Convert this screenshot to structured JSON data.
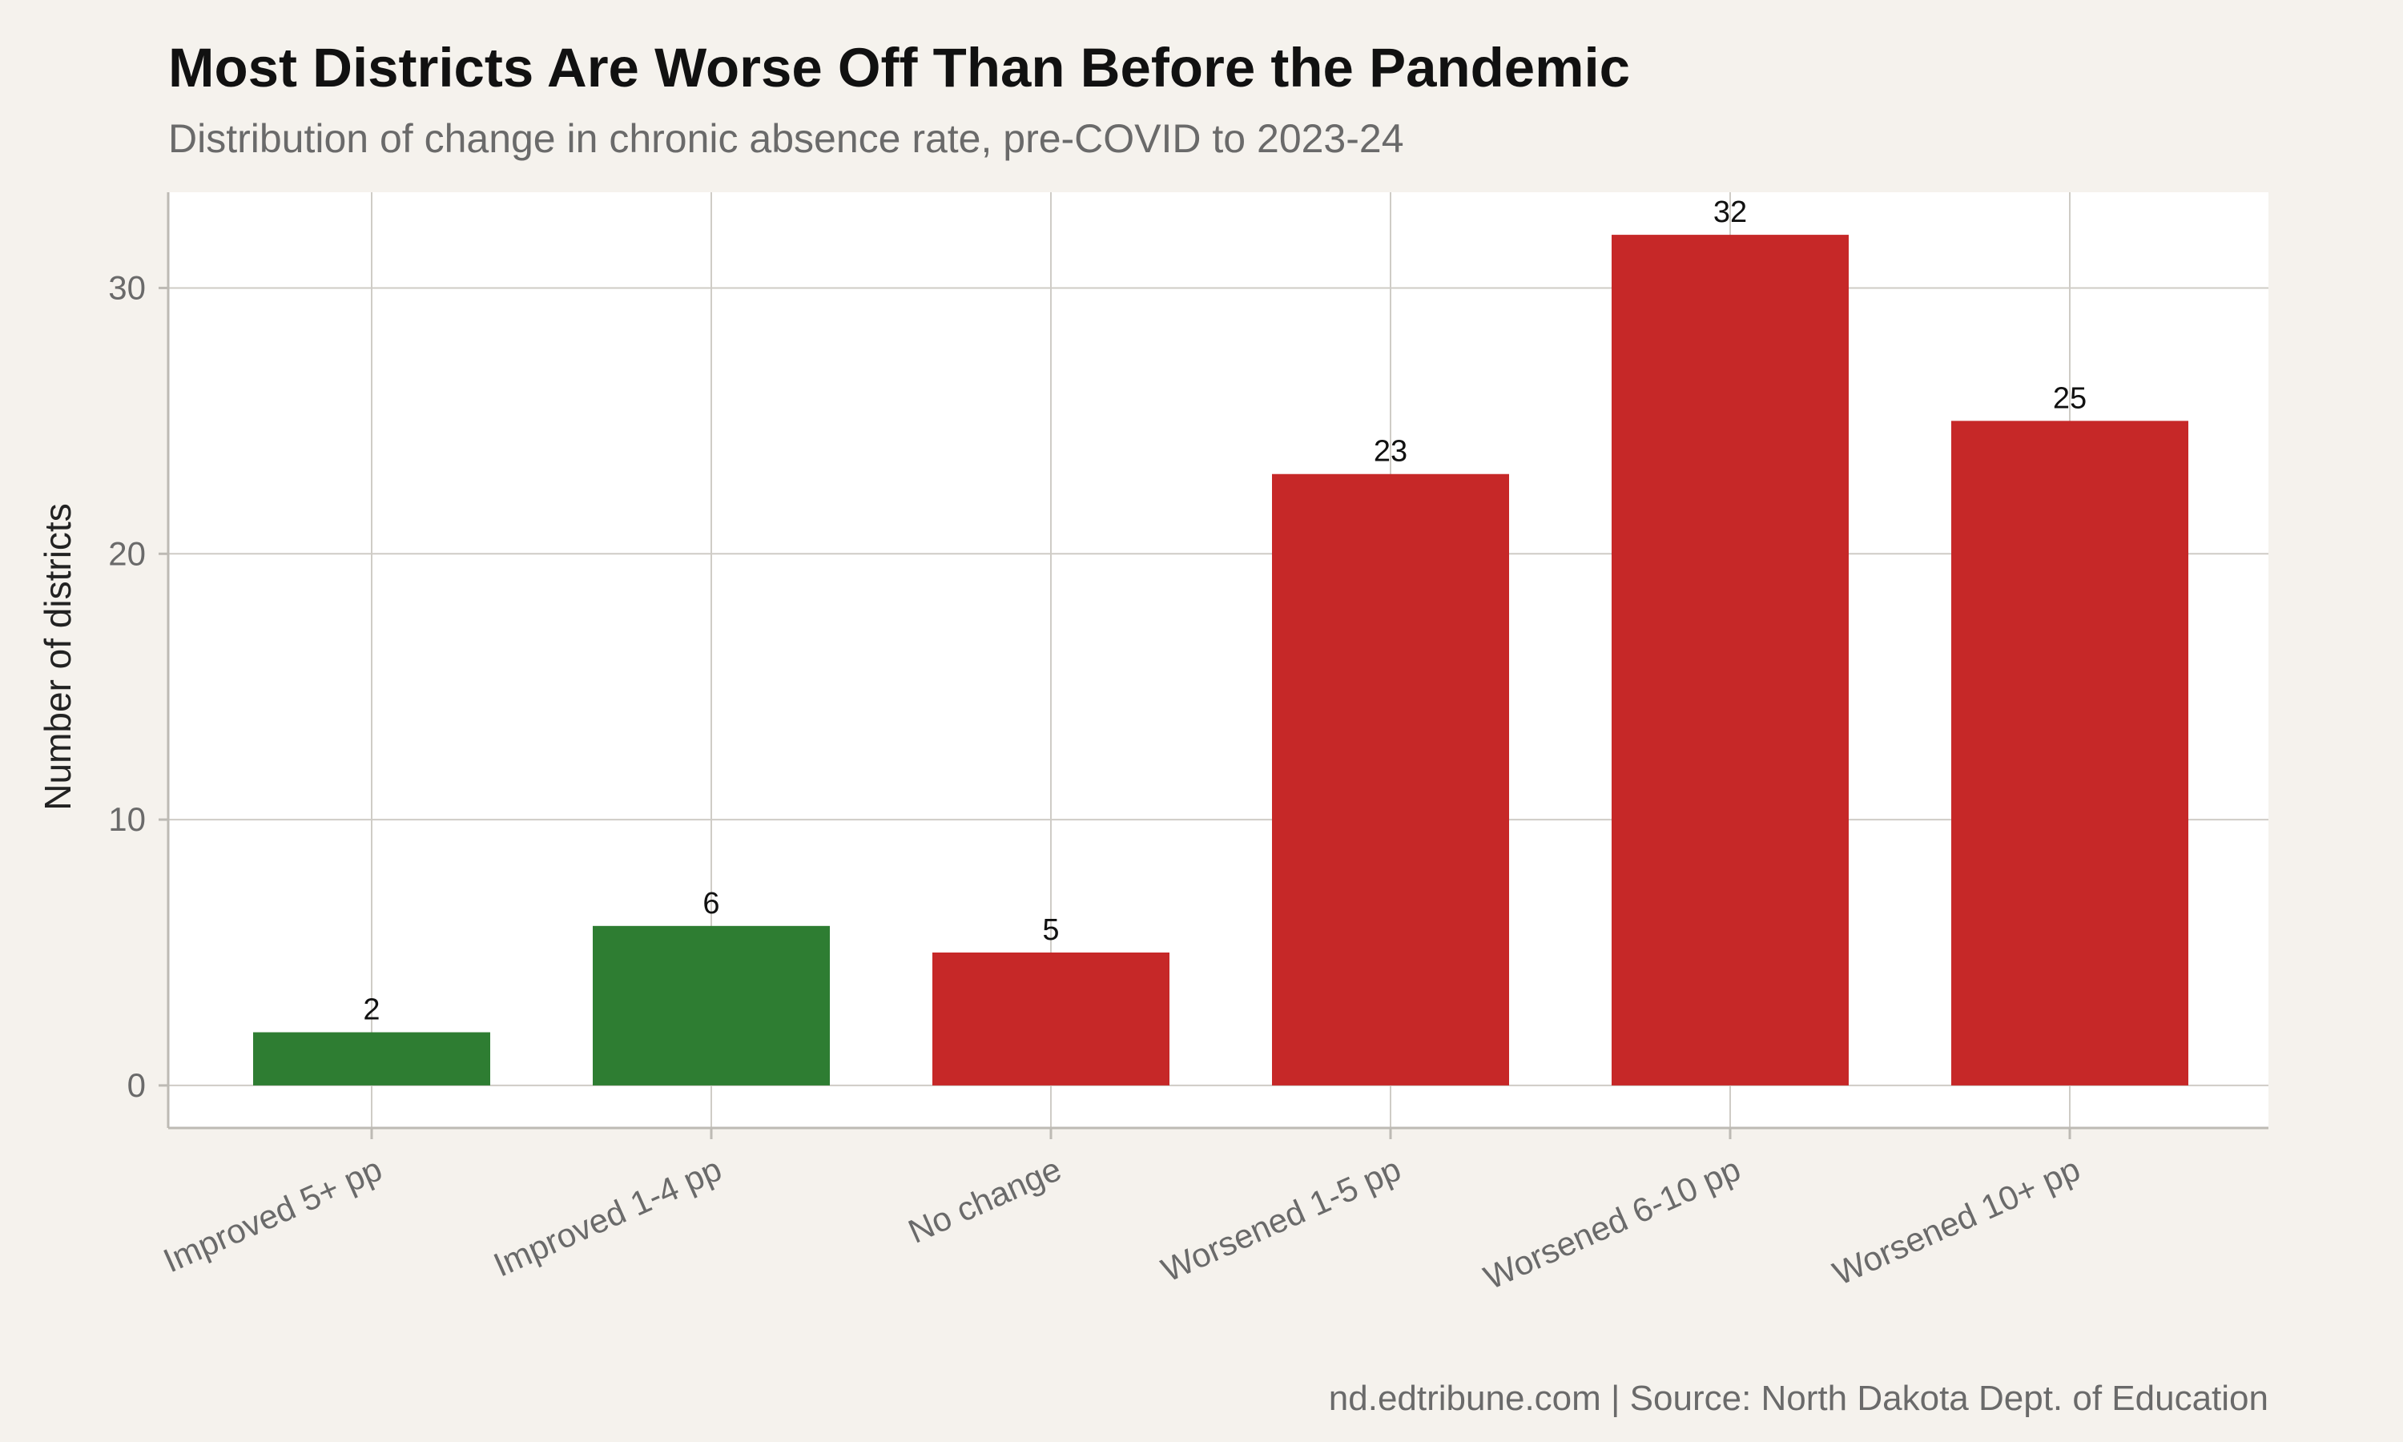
{
  "chart_data": {
    "type": "bar",
    "title": "Most Districts Are Worse Off Than Before the Pandemic",
    "subtitle": "Distribution of change in chronic absence rate, pre-COVID to 2023-24",
    "caption": "nd.edtribune.com | Source: North Dakota Dept. of Education",
    "xlabel": "",
    "ylabel": "Number of districts",
    "categories": [
      "Improved 5+ pp",
      "Improved 1-4 pp",
      "No change",
      "Worsened 1-5 pp",
      "Worsened 6-10 pp",
      "Worsened 10+ pp"
    ],
    "values": [
      2,
      6,
      5,
      23,
      32,
      25
    ],
    "bar_colors": [
      "#2e7d32",
      "#2e7d32",
      "#c62828",
      "#c62828",
      "#c62828",
      "#c62828"
    ],
    "ylim": [
      -1.6,
      33.6
    ],
    "yticks": [
      0,
      10,
      20,
      30
    ],
    "grid": true,
    "legend": "none",
    "data_labels": true
  }
}
